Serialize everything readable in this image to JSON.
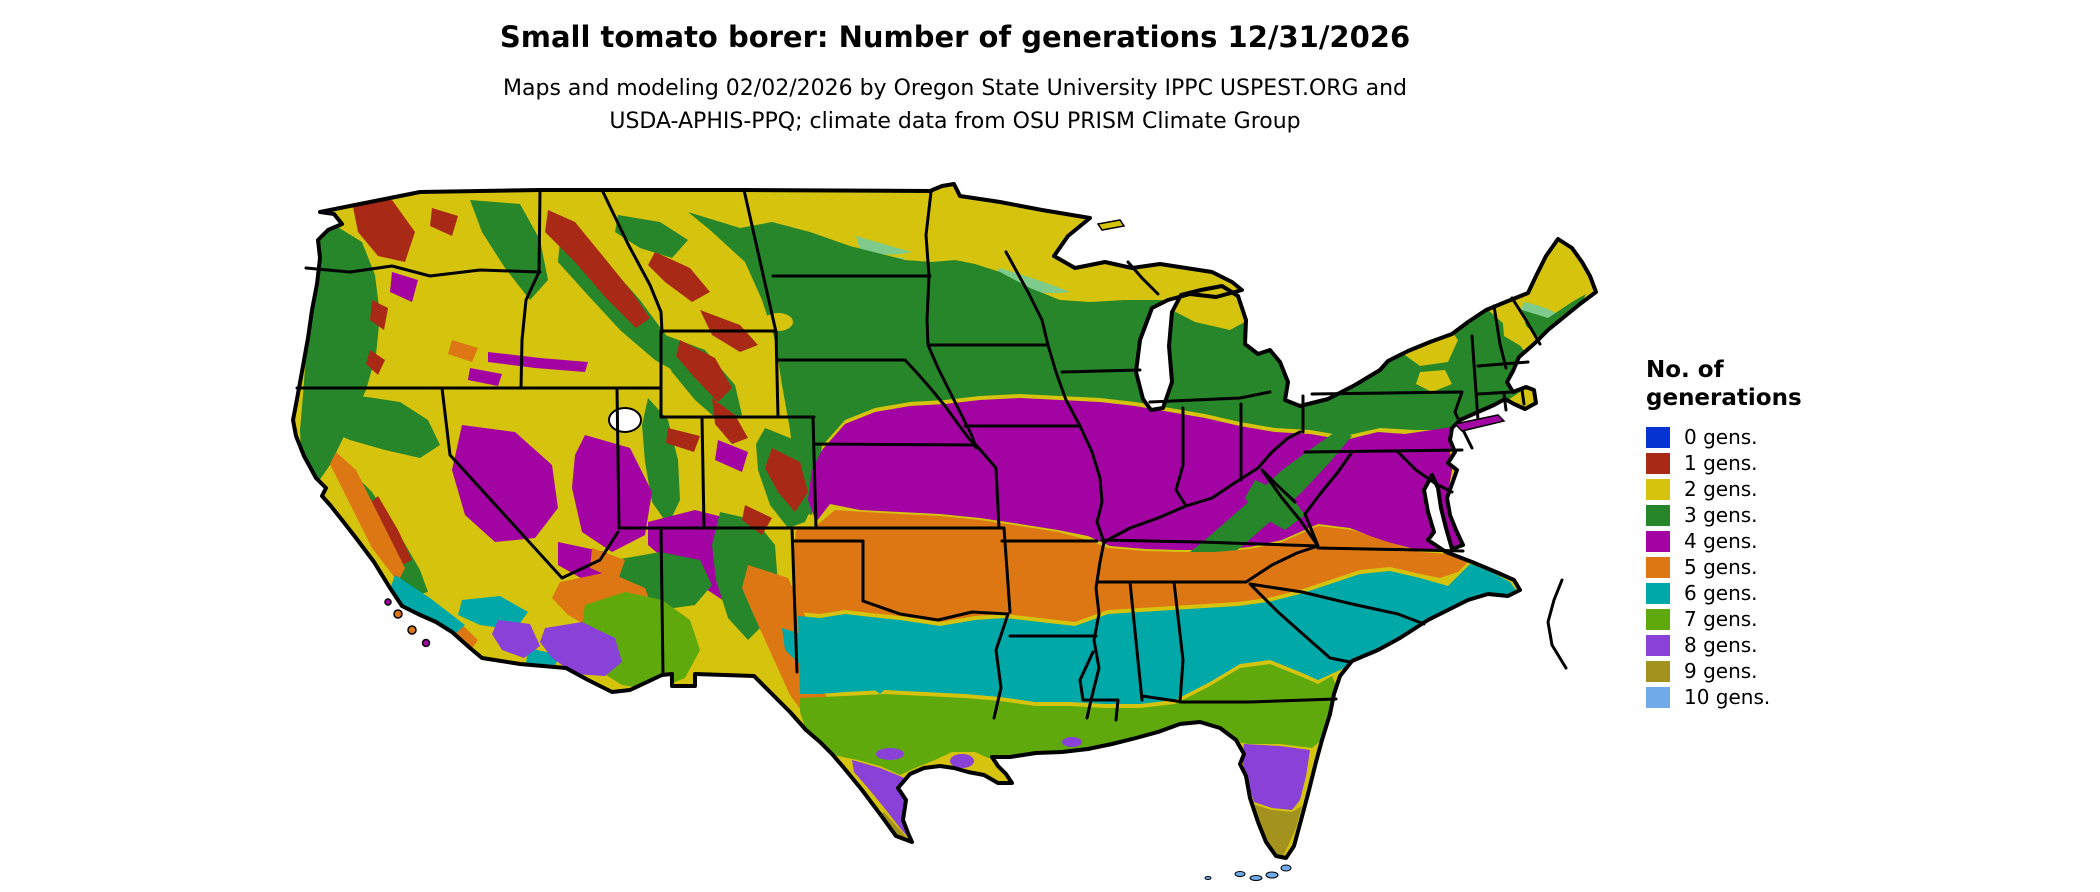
{
  "title": "Small tomato borer: Number of generations 12/31/2026",
  "subtitle": {
    "line1": "Maps and modeling 02/02/2026 by Oregon State University IPPC USPEST.ORG and",
    "line2": "USDA-APHIS-PPQ; climate data from OSU PRISM Climate Group"
  },
  "legend": {
    "title_line1": "No. of",
    "title_line2": "generations",
    "items": [
      {
        "value": 0,
        "label": "0 gens.",
        "color": "#0433d1"
      },
      {
        "value": 1,
        "label": "1 gens.",
        "color": "#a82a16"
      },
      {
        "value": 2,
        "label": "2 gens.",
        "color": "#d6c30e"
      },
      {
        "value": 3,
        "label": "3 gens.",
        "color": "#27862a"
      },
      {
        "value": 4,
        "label": "4 gens.",
        "color": "#a303a3"
      },
      {
        "value": 5,
        "label": "5 gens.",
        "color": "#dc7714"
      },
      {
        "value": 6,
        "label": "6 gens.",
        "color": "#00a8a8"
      },
      {
        "value": 7,
        "label": "7 gens.",
        "color": "#5fa90d"
      },
      {
        "value": 8,
        "label": "8 gens.",
        "color": "#8941d8"
      },
      {
        "value": 9,
        "label": "9 gens.",
        "color": "#a4921e"
      },
      {
        "value": 10,
        "label": "10 gens.",
        "color": "#70aae8"
      }
    ]
  },
  "map": {
    "border_color": "#000000",
    "water_color": "#ffffff",
    "transition_shade": "#7ecb8c",
    "bands_north_to_south": [
      2,
      3,
      4,
      5,
      6,
      7,
      8,
      9,
      10
    ]
  }
}
